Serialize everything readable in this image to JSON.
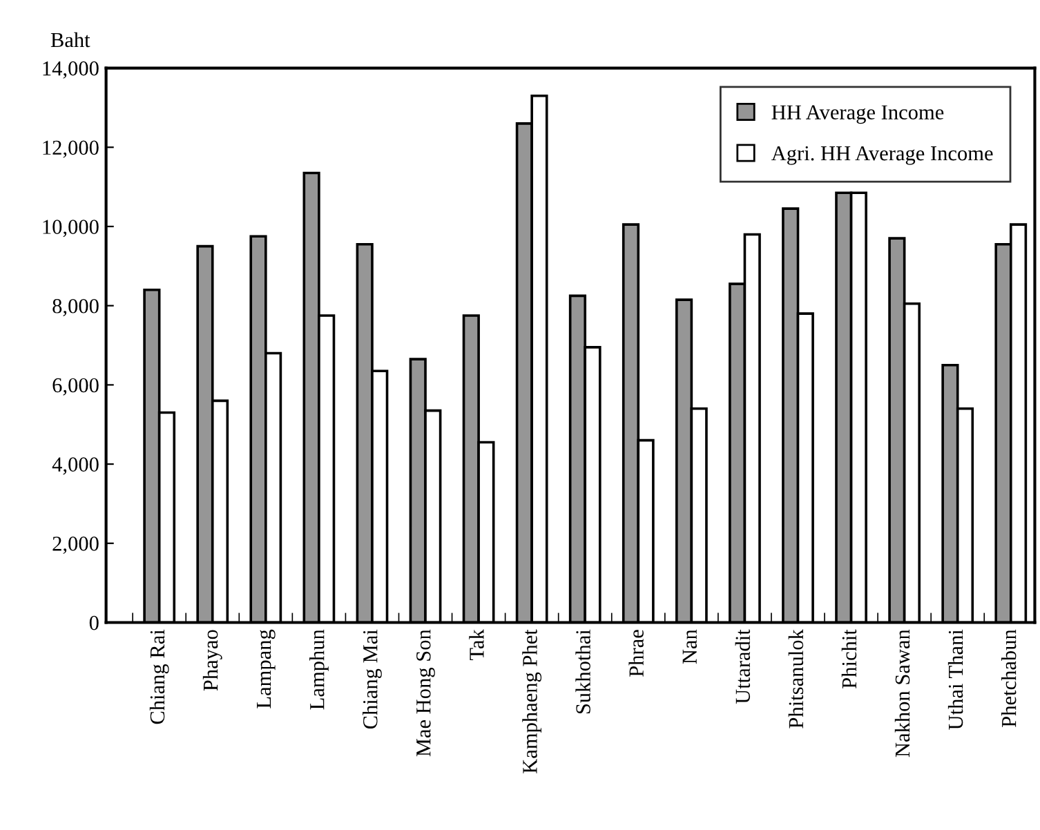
{
  "chart_data": {
    "type": "bar",
    "ylabel": "Baht",
    "categories": [
      "Chiang Rai",
      "Phayao",
      "Lampang",
      "Lamphun",
      "Chiang Mai",
      "Mae Hong Son",
      "Tak",
      "Kamphaeng Phet",
      "Sukhothai",
      "Phrae",
      "Nan",
      "Uttaradit",
      "Phitsanulok",
      "Phichit",
      "Nakhon Sawan",
      "Uthai Thani",
      "Phetchabun"
    ],
    "series": [
      {
        "name": "HH Average Income",
        "color": "#969696",
        "values": [
          8400,
          9500,
          9750,
          11350,
          9550,
          6650,
          7750,
          12600,
          8250,
          10050,
          8150,
          8550,
          10450,
          10850,
          9700,
          6500,
          9550
        ]
      },
      {
        "name": "Agri. HH Average Income",
        "color": "#ffffff",
        "values": [
          5300,
          5600,
          6800,
          7750,
          6350,
          5350,
          4550,
          13300,
          6950,
          4600,
          5400,
          9800,
          7800,
          10850,
          8050,
          5400,
          10050
        ]
      }
    ],
    "ylim": [
      0,
      14000
    ],
    "yticks": [
      0,
      {
        "value": 2000,
        "label": "2,000"
      },
      {
        "value": 4000,
        "label": "4,000"
      },
      {
        "value": 6000,
        "label": "6,000"
      },
      {
        "value": 8000,
        "label": "8,000"
      },
      {
        "value": 10000,
        "label": "10,000"
      },
      {
        "value": 12000,
        "label": "12,000"
      },
      {
        "value": 14000,
        "label": "14,000"
      }
    ],
    "grid": false,
    "legend": "top right"
  }
}
